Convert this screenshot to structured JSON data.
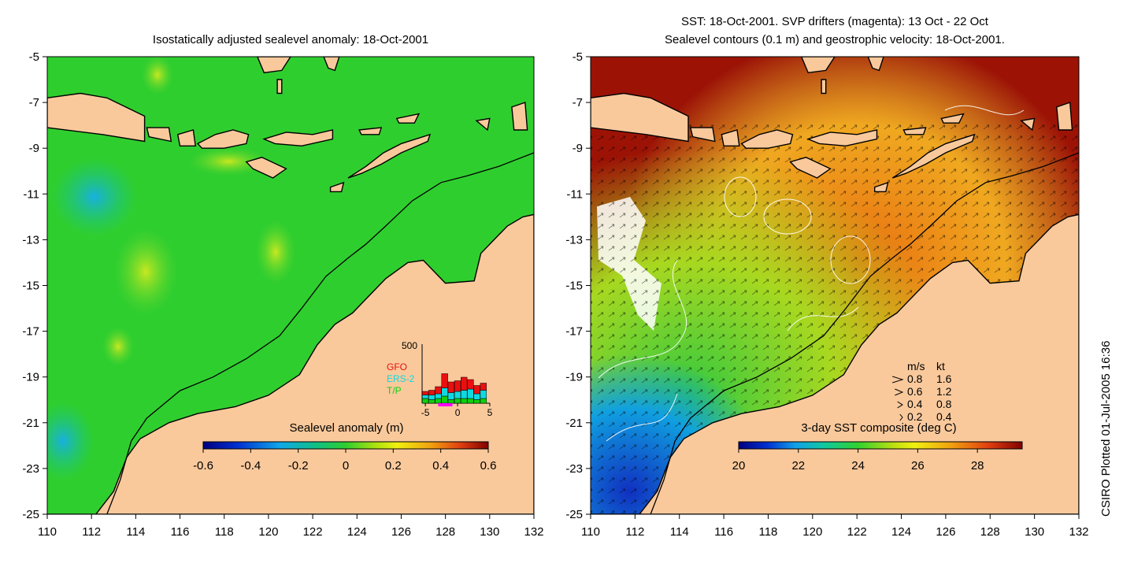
{
  "left_panel": {
    "title": "Isostatically adjusted sealevel anomaly: 18-Oct-2001",
    "colorbar_label": "Sealevel anomaly (m)",
    "colorbar_ticks": [
      "-0.6",
      "-0.4",
      "-0.2",
      "0",
      "0.2",
      "0.4",
      "0.6"
    ],
    "colorbar_range": [
      -0.6,
      0.6
    ],
    "inset": {
      "ymax_label": "500",
      "legend": [
        {
          "label": "GFO",
          "color": "#e81010"
        },
        {
          "label": "ERS-2",
          "color": "#10d8e0"
        },
        {
          "label": "T/P",
          "color": "#10d010"
        }
      ],
      "x_ticks": [
        "-5",
        "0",
        "5"
      ],
      "bars": [
        {
          "x": -5,
          "tp": 40,
          "ers": 30,
          "gfo": 30
        },
        {
          "x": -4,
          "tp": 30,
          "ers": 40,
          "gfo": 40
        },
        {
          "x": -3,
          "tp": 40,
          "ers": 40,
          "gfo": 60
        },
        {
          "x": -2,
          "tp": 60,
          "ers": 70,
          "gfo": 120
        },
        {
          "x": -1,
          "tp": 30,
          "ers": 60,
          "gfo": 90
        },
        {
          "x": 0,
          "tp": 40,
          "ers": 60,
          "gfo": 90
        },
        {
          "x": 1,
          "tp": 40,
          "ers": 70,
          "gfo": 110
        },
        {
          "x": 2,
          "tp": 40,
          "ers": 80,
          "gfo": 80
        },
        {
          "x": 3,
          "tp": 30,
          "ers": 50,
          "gfo": 70
        },
        {
          "x": 4,
          "tp": 40,
          "ers": 70,
          "gfo": 60
        }
      ]
    }
  },
  "right_panel": {
    "title_line1": "SST: 18-Oct-2001. SVP drifters (magenta): 13 Oct - 22 Oct",
    "title_line2": "Sealevel contours (0.1 m) and geostrophic velocity: 18-Oct-2001.",
    "colorbar_label": "3-day SST composite (deg C)",
    "colorbar_ticks": [
      "20",
      "22",
      "24",
      "26",
      "28"
    ],
    "colorbar_range": [
      20,
      29.5
    ],
    "velocity_key": {
      "header_ms": "m/s",
      "header_kt": "kt",
      "rows": [
        {
          "ms": "0.8",
          "kt": "1.6"
        },
        {
          "ms": "0.6",
          "kt": "1.2"
        },
        {
          "ms": "0.4",
          "kt": "0.8"
        },
        {
          "ms": "0.2",
          "kt": "0.4"
        }
      ]
    }
  },
  "axes": {
    "x_ticks": [
      "110",
      "112",
      "114",
      "116",
      "118",
      "120",
      "122",
      "124",
      "126",
      "128",
      "130",
      "132"
    ],
    "y_ticks": [
      "-5",
      "-7",
      "-9",
      "-11",
      "-13",
      "-15",
      "-17",
      "-19",
      "-21",
      "-23",
      "-25"
    ],
    "lon_range": [
      110,
      132
    ],
    "lat_range": [
      -25,
      -5
    ]
  },
  "credit": "CSIRO Plotted 01-Jul-2005 16:36",
  "colors": {
    "land": "#f9c99c",
    "sla_water": "#2fce2f",
    "sst_warm": "#9c1306",
    "coast": "#000000"
  }
}
